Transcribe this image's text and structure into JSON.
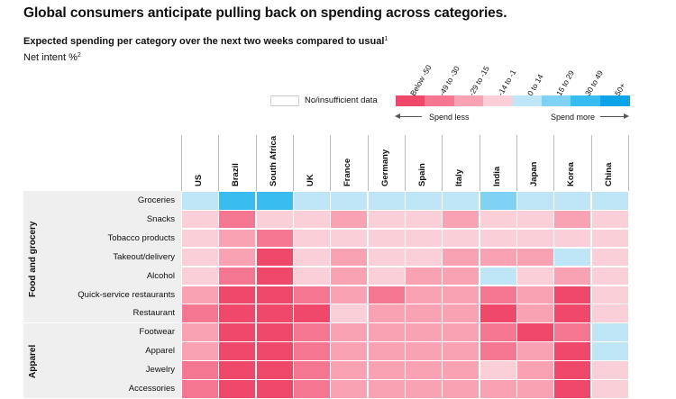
{
  "title": "Global consumers anticipate pulling back on spending across categories.",
  "subtitle": "Expected spending per category over the next two weeks compared to usual",
  "subtitle_note": "1",
  "unit": "Net intent %",
  "unit_note": "2",
  "legend": {
    "no_data_label": "No/insufficient data",
    "spend_less": "Spend less",
    "spend_more": "Spend more",
    "bins": [
      {
        "label": "Below -50",
        "color": "#f0486a"
      },
      {
        "label": "-49 to -30",
        "color": "#f47690"
      },
      {
        "label": "-29 to -15",
        "color": "#f8a2b3"
      },
      {
        "label": "-14 to -1",
        "color": "#fbcfd8"
      },
      {
        "label": "0 to 14",
        "color": "#bfe6f6"
      },
      {
        "label": "15 to 29",
        "color": "#7fd2f3"
      },
      {
        "label": "30 to 49",
        "color": "#39bdf0"
      },
      {
        "label": "50+",
        "color": "#0ea4e8"
      }
    ]
  },
  "chart_data": {
    "type": "heatmap",
    "title": "Global consumers anticipate pulling back on spending across categories.",
    "subtitle": "Expected spending per category over the next two weeks compared to usual",
    "value_label": "Net intent %",
    "columns": [
      "US",
      "Brazil",
      "South Africa",
      "UK",
      "France",
      "Germany",
      "Spain",
      "Italy",
      "India",
      "Japan",
      "Korea",
      "China"
    ],
    "groups": [
      {
        "name": "Food and grocery",
        "rows": [
          "Groceries",
          "Snacks",
          "Tobacco products",
          "Takeout/delivery",
          "Alcohol",
          "Quick-service restaurants",
          "Restaurant"
        ]
      },
      {
        "name": "Apparel",
        "rows": [
          "Footwear",
          "Apparel",
          "Jewelry",
          "Accessories"
        ]
      }
    ],
    "rows": [
      "Groceries",
      "Snacks",
      "Tobacco products",
      "Takeout/delivery",
      "Alcohol",
      "Quick-service restaurants",
      "Restaurant",
      "Footwear",
      "Apparel",
      "Jewelry",
      "Accessories"
    ],
    "bin_index_matrix": [
      [
        4,
        6,
        6,
        4,
        4,
        4,
        4,
        4,
        5,
        4,
        4,
        4
      ],
      [
        3,
        1,
        3,
        3,
        2,
        3,
        3,
        2,
        3,
        3,
        2,
        3
      ],
      [
        3,
        2,
        1,
        3,
        3,
        3,
        3,
        3,
        3,
        3,
        3,
        3
      ],
      [
        3,
        2,
        0,
        3,
        2,
        3,
        3,
        2,
        2,
        2,
        4,
        3
      ],
      [
        3,
        1,
        0,
        3,
        2,
        3,
        2,
        2,
        4,
        3,
        2,
        3
      ],
      [
        2,
        0,
        0,
        1,
        2,
        1,
        2,
        2,
        1,
        2,
        0,
        3
      ],
      [
        1,
        0,
        0,
        0,
        3,
        2,
        2,
        2,
        0,
        2,
        0,
        3
      ],
      [
        2,
        0,
        0,
        1,
        2,
        2,
        2,
        2,
        1,
        0,
        1,
        4
      ],
      [
        2,
        0,
        0,
        1,
        2,
        2,
        2,
        2,
        1,
        2,
        0,
        4
      ],
      [
        1,
        0,
        0,
        1,
        2,
        2,
        2,
        2,
        3,
        2,
        0,
        3
      ],
      [
        1,
        0,
        0,
        1,
        2,
        2,
        2,
        2,
        2,
        2,
        0,
        3
      ]
    ]
  }
}
